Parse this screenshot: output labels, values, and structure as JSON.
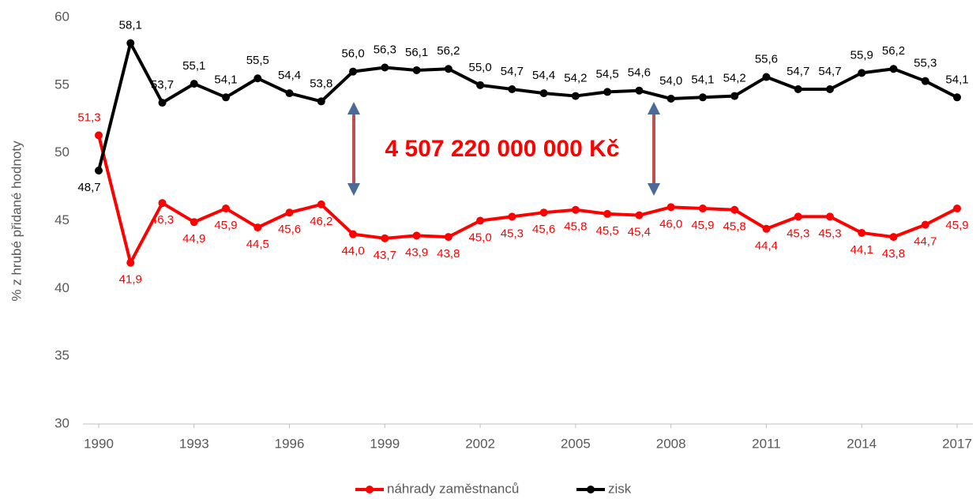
{
  "chart_data": {
    "type": "line",
    "y_label": "% z hrubé přidané hodnoty",
    "annotation": "4 507 220 000 000 Kč",
    "x": [
      1990,
      1991,
      1992,
      1993,
      1994,
      1995,
      1996,
      1997,
      1998,
      1999,
      2000,
      2001,
      2002,
      2003,
      2004,
      2005,
      2006,
      2007,
      2008,
      2009,
      2010,
      2011,
      2012,
      2013,
      2014,
      2015,
      2016,
      2017
    ],
    "xlim": [
      1990,
      2017
    ],
    "xticks": [
      1990,
      1993,
      1996,
      1999,
      2002,
      2005,
      2008,
      2011,
      2014,
      2017
    ],
    "ylim": [
      30,
      60
    ],
    "yticks": [
      30,
      35,
      40,
      45,
      50,
      55,
      60
    ],
    "grid": false,
    "legend": "bottom",
    "series": [
      {
        "name": "náhrady zaměstnanců",
        "color": "#ff0000",
        "values": [
          51.3,
          41.9,
          46.3,
          44.9,
          45.9,
          44.5,
          45.6,
          46.2,
          44.0,
          43.7,
          43.9,
          43.8,
          45.0,
          45.3,
          45.6,
          45.8,
          45.5,
          45.4,
          46.0,
          45.9,
          45.8,
          44.4,
          45.3,
          45.3,
          44.1,
          43.8,
          44.7,
          45.9
        ],
        "value_labels": [
          "51,3",
          "41,9",
          "46,3",
          "44,9",
          "45,9",
          "44,5",
          "45,6",
          "46,2",
          "44,0",
          "43,7",
          "43,9",
          "43,8",
          "45,0",
          "45,3",
          "45,6",
          "45,8",
          "45,5",
          "45,4",
          "46,0",
          "45,9",
          "45,8",
          "44,4",
          "45,3",
          "45,3",
          "44,1",
          "43,8",
          "44,7",
          "45,9"
        ]
      },
      {
        "name": "zisk",
        "color": "#000000",
        "values": [
          48.7,
          58.1,
          53.7,
          55.1,
          54.1,
          55.5,
          54.4,
          53.8,
          56.0,
          56.3,
          56.1,
          56.2,
          55.0,
          54.7,
          54.4,
          54.2,
          54.5,
          54.6,
          54.0,
          54.1,
          54.2,
          55.6,
          54.7,
          54.7,
          55.9,
          56.2,
          55.3,
          54.1
        ],
        "value_labels": [
          "48,7",
          "58,1",
          "53,7",
          "55,1",
          "54,1",
          "55,5",
          "54,4",
          "53,8",
          "56,0",
          "56,3",
          "56,1",
          "56,2",
          "55,0",
          "54,7",
          "54,4",
          "54,2",
          "54,5",
          "54,6",
          "54,0",
          "54,1",
          "54,2",
          "55,6",
          "54,7",
          "54,7",
          "55,9",
          "56,2",
          "55,3",
          "54,1"
        ]
      }
    ]
  }
}
